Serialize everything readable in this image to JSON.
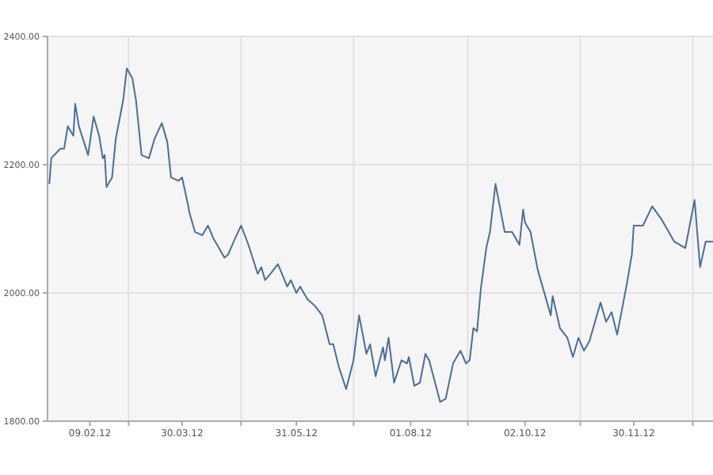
{
  "chart_data": {
    "type": "line",
    "x": [
      "2012-01-18",
      "2012-01-19",
      "2012-01-24",
      "2012-01-26",
      "2012-01-28",
      "2012-01-31",
      "2012-02-01",
      "2012-02-03",
      "2012-02-08",
      "2012-02-11",
      "2012-02-14",
      "2012-02-16",
      "2012-02-17",
      "2012-02-18",
      "2012-02-21",
      "2012-02-23",
      "2012-02-27",
      "2012-02-29",
      "2012-03-03",
      "2012-03-05",
      "2012-03-08",
      "2012-03-12",
      "2012-03-15",
      "2012-03-19",
      "2012-03-22",
      "2012-03-24",
      "2012-03-28",
      "2012-03-30",
      "2012-04-02",
      "2012-04-03",
      "2012-04-06",
      "2012-04-10",
      "2012-04-13",
      "2012-04-16",
      "2012-04-18",
      "2012-04-22",
      "2012-04-24",
      "2012-04-27",
      "2012-05-01",
      "2012-05-05",
      "2012-05-10",
      "2012-05-12",
      "2012-05-14",
      "2012-05-17",
      "2012-05-21",
      "2012-05-26",
      "2012-05-28",
      "2012-05-31",
      "2012-06-02",
      "2012-06-06",
      "2012-06-10",
      "2012-06-14",
      "2012-06-18",
      "2012-06-20",
      "2012-06-23",
      "2012-06-27",
      "2012-07-01",
      "2012-07-04",
      "2012-07-05",
      "2012-07-08",
      "2012-07-10",
      "2012-07-13",
      "2012-07-17",
      "2012-07-18",
      "2012-07-20",
      "2012-07-23",
      "2012-07-27",
      "2012-07-30",
      "2012-07-31",
      "2012-08-03",
      "2012-08-06",
      "2012-08-09",
      "2012-08-11",
      "2012-08-17",
      "2012-08-20",
      "2012-08-24",
      "2012-08-28",
      "2012-08-31",
      "2012-09-02",
      "2012-09-04",
      "2012-09-06",
      "2012-09-08",
      "2012-09-11",
      "2012-09-13",
      "2012-09-16",
      "2012-09-18",
      "2012-09-21",
      "2012-09-24",
      "2012-09-25",
      "2012-09-29",
      "2012-10-01",
      "2012-10-02",
      "2012-10-05",
      "2012-10-06",
      "2012-10-09",
      "2012-10-16",
      "2012-10-17",
      "2012-10-21",
      "2012-10-25",
      "2012-10-28",
      "2012-10-31",
      "2012-11-03",
      "2012-11-06",
      "2012-11-12",
      "2012-11-15",
      "2012-11-18",
      "2012-11-21",
      "2012-11-26",
      "2012-11-29",
      "2012-11-30",
      "2012-12-05",
      "2012-12-10",
      "2012-12-15",
      "2012-12-19",
      "2012-12-22",
      "2012-12-28",
      "2013-01-02",
      "2013-01-05",
      "2013-01-08",
      "2013-01-12"
    ],
    "series": [
      {
        "color": "#4a6e98",
        "values": [
          2170,
          2210,
          2225,
          2225,
          2260,
          2245,
          2295,
          2260,
          2215,
          2275,
          2245,
          2210,
          2215,
          2165,
          2180,
          2240,
          2300,
          2350,
          2335,
          2300,
          2215,
          2210,
          2240,
          2265,
          2235,
          2180,
          2175,
          2180,
          2140,
          2125,
          2095,
          2090,
          2105,
          2085,
          2075,
          2055,
          2060,
          2080,
          2105,
          2075,
          2030,
          2040,
          2020,
          2030,
          2045,
          2010,
          2020,
          2000,
          2010,
          1990,
          1980,
          1965,
          1920,
          1920,
          1885,
          1850,
          1895,
          1965,
          1950,
          1905,
          1920,
          1870,
          1915,
          1895,
          1930,
          1860,
          1895,
          1890,
          1900,
          1855,
          1860,
          1905,
          1895,
          1830,
          1835,
          1890,
          1910,
          1890,
          1895,
          1945,
          1940,
          2005,
          2070,
          2095,
          2170,
          2140,
          2095,
          2095,
          2095,
          2075,
          2130,
          2110,
          2095,
          2080,
          2035,
          1965,
          1995,
          1945,
          1930,
          1900,
          1930,
          1910,
          1925,
          1985,
          1955,
          1970,
          1935,
          2010,
          2060,
          2105,
          2105,
          2135,
          2115,
          2095,
          2080,
          2070,
          2145,
          2040,
          2080,
          2080
        ]
      }
    ],
    "xlim": [
      "2012-01-17",
      "2013-01-12"
    ],
    "xticks": [
      {
        "value": "2012-02-09",
        "label": "09.02.12"
      },
      {
        "value": "2012-03-01",
        "label": null
      },
      {
        "value": "2012-03-30",
        "label": "30.03.12"
      },
      {
        "value": "2012-05-01",
        "label": null
      },
      {
        "value": "2012-05-31",
        "label": "31.05.12"
      },
      {
        "value": "2012-07-01",
        "label": null
      },
      {
        "value": "2012-08-01",
        "label": "01.08.12"
      },
      {
        "value": "2012-09-01",
        "label": null
      },
      {
        "value": "2012-10-02",
        "label": "02.10.12"
      },
      {
        "value": "2012-11-01",
        "label": null
      },
      {
        "value": "2012-11-30",
        "label": "30.11.12"
      },
      {
        "value": "2013-01-01",
        "label": null
      }
    ],
    "ylim": [
      1800,
      2400
    ],
    "yticks": [
      {
        "value": 1800,
        "label": "1800.00"
      },
      {
        "value": 2000,
        "label": "2000.00"
      },
      {
        "value": 2200,
        "label": "2200.00"
      },
      {
        "value": 2400,
        "label": "2400.00"
      }
    ],
    "grid": true,
    "marker": "none",
    "line_style": "solid"
  }
}
